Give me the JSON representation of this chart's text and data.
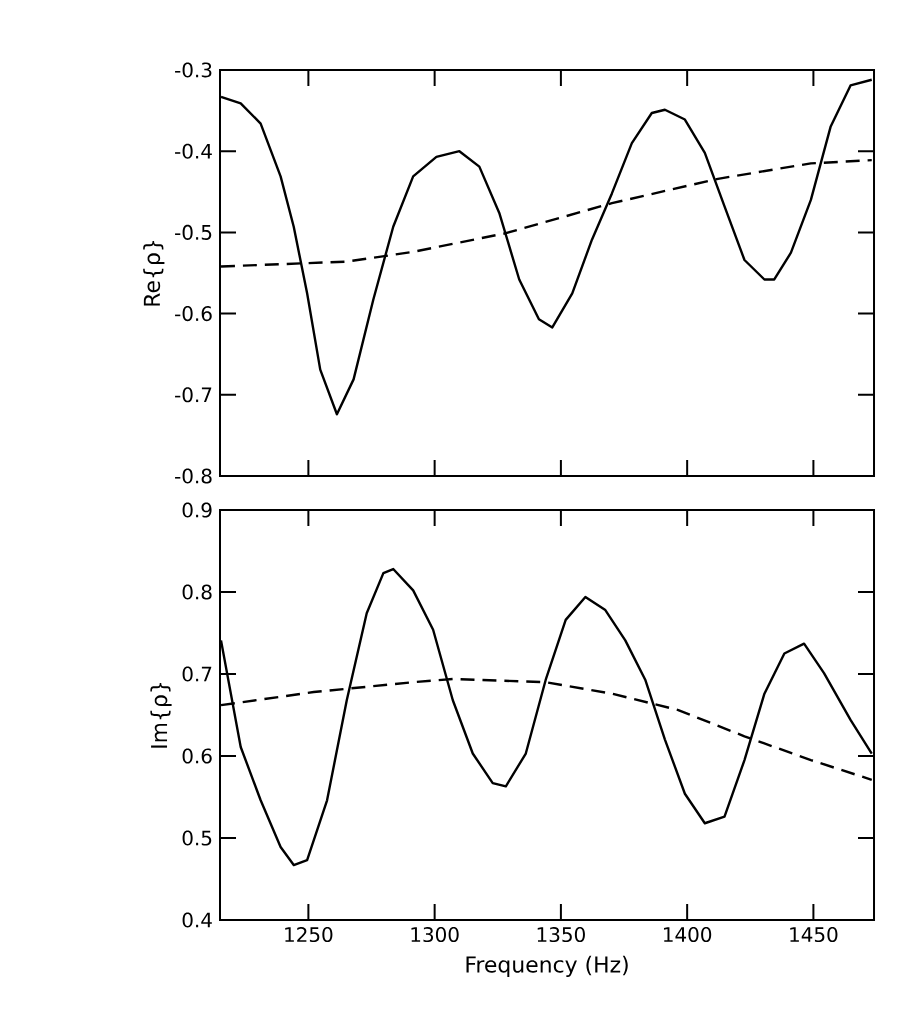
{
  "chart_data": [
    {
      "type": "line",
      "ylabel": "Re{ρ}",
      "xlim": [
        1215,
        1474
      ],
      "xticks": [
        1250,
        1300,
        1350,
        1400,
        1450
      ],
      "ylim": [
        -0.8,
        -0.3
      ],
      "yticks": [
        -0.8,
        -0.7,
        -0.6,
        -0.5,
        -0.4,
        -0.3
      ],
      "tick_labels": "y",
      "grid": false,
      "series": [
        {
          "color": "#000000",
          "line_style": "solid",
          "x": [
            1215.4,
            1223.2,
            1231.1,
            1239.0,
            1244.2,
            1249.5,
            1254.7,
            1261.3,
            1267.9,
            1275.7,
            1283.6,
            1291.5,
            1300.7,
            1309.8,
            1317.7,
            1325.6,
            1333.5,
            1341.3,
            1346.6,
            1354.5,
            1362.3,
            1370.2,
            1378.1,
            1386.0,
            1391.2,
            1399.1,
            1407.0,
            1414.8,
            1422.7,
            1430.6,
            1434.5,
            1441.1,
            1449.0,
            1456.8,
            1464.7,
            1473.1
          ],
          "values": [
            -0.333,
            -0.341,
            -0.366,
            -0.431,
            -0.493,
            -0.575,
            -0.669,
            -0.724,
            -0.681,
            -0.583,
            -0.493,
            -0.431,
            -0.407,
            -0.4,
            -0.419,
            -0.476,
            -0.558,
            -0.607,
            -0.617,
            -0.575,
            -0.509,
            -0.452,
            -0.39,
            -0.353,
            -0.349,
            -0.361,
            -0.402,
            -0.468,
            -0.534,
            -0.558,
            -0.558,
            -0.525,
            -0.46,
            -0.37,
            -0.319,
            -0.312
          ]
        },
        {
          "color": "#000000",
          "line_style": "dashed",
          "x": [
            1215.4,
            1265.2,
            1291.5,
            1328.2,
            1370.2,
            1412.2,
            1449.0,
            1473.1
          ],
          "values": [
            -0.542,
            -0.536,
            -0.524,
            -0.501,
            -0.464,
            -0.434,
            -0.415,
            -0.411
          ]
        }
      ]
    },
    {
      "type": "line",
      "xlabel": "Frequency (Hz)",
      "ylabel": "Im{ρ}",
      "xlim": [
        1215,
        1474
      ],
      "xticks": [
        1250,
        1300,
        1350,
        1400,
        1450
      ],
      "ylim": [
        0.4,
        0.9
      ],
      "yticks": [
        0.4,
        0.5,
        0.6,
        0.7,
        0.8,
        0.9
      ],
      "grid": false,
      "series": [
        {
          "color": "#000000",
          "line_style": "solid",
          "x": [
            1215.4,
            1223.2,
            1231.1,
            1239.0,
            1244.2,
            1249.5,
            1257.4,
            1265.2,
            1273.1,
            1279.7,
            1283.6,
            1291.5,
            1299.4,
            1307.2,
            1315.1,
            1323.0,
            1328.2,
            1336.1,
            1344.0,
            1351.9,
            1359.7,
            1367.6,
            1375.5,
            1383.4,
            1391.2,
            1399.1,
            1407.0,
            1414.8,
            1422.7,
            1430.6,
            1438.5,
            1446.3,
            1454.2,
            1464.7,
            1473.1
          ],
          "values": [
            0.741,
            0.611,
            0.546,
            0.489,
            0.467,
            0.473,
            0.546,
            0.668,
            0.774,
            0.823,
            0.828,
            0.802,
            0.754,
            0.668,
            0.603,
            0.567,
            0.563,
            0.603,
            0.693,
            0.766,
            0.794,
            0.778,
            0.741,
            0.693,
            0.62,
            0.554,
            0.518,
            0.526,
            0.595,
            0.676,
            0.725,
            0.737,
            0.701,
            0.644,
            0.603
          ]
        },
        {
          "color": "#000000",
          "line_style": "dashed",
          "x": [
            1215.4,
            1252.1,
            1291.5,
            1307.2,
            1344.0,
            1370.2,
            1396.5,
            1422.7,
            1449.0,
            1473.1
          ],
          "values": [
            0.662,
            0.678,
            0.69,
            0.694,
            0.69,
            0.676,
            0.656,
            0.624,
            0.595,
            0.571
          ]
        }
      ]
    }
  ]
}
